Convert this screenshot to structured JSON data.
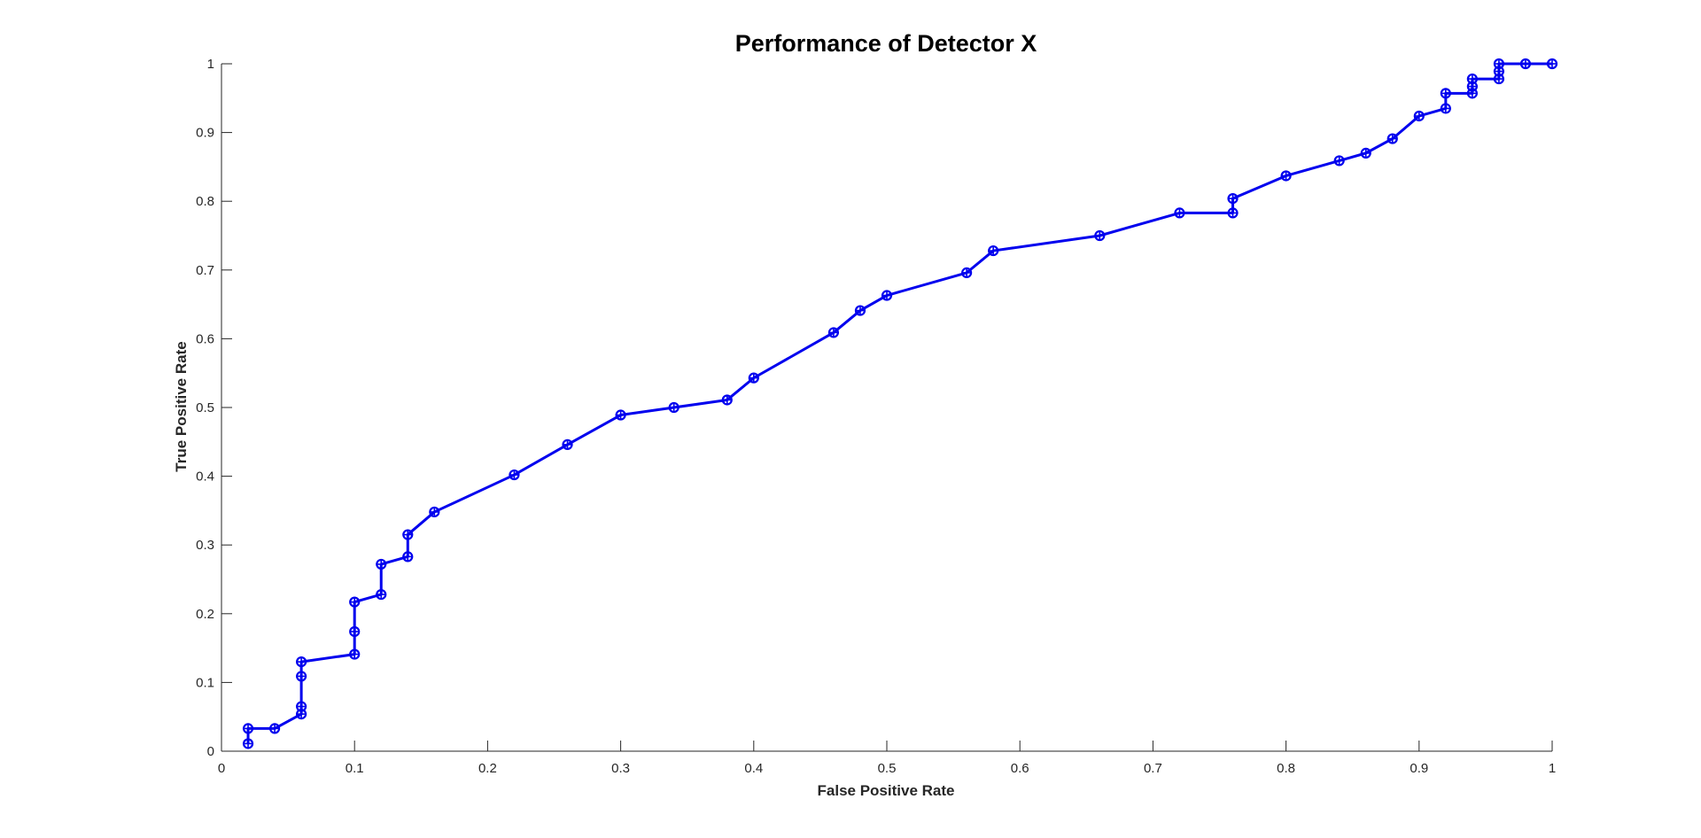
{
  "chart_data": {
    "type": "line",
    "title": "Performance of Detector X",
    "xlabel": "False Positive Rate",
    "ylabel": "True Positive Rate",
    "xlim": [
      0,
      1
    ],
    "ylim": [
      0,
      1
    ],
    "xticks": [
      "0",
      "0.1",
      "0.2",
      "0.3",
      "0.4",
      "0.5",
      "0.6",
      "0.7",
      "0.8",
      "0.9",
      "1"
    ],
    "yticks": [
      "0",
      "0.1",
      "0.2",
      "0.3",
      "0.4",
      "0.5",
      "0.6",
      "0.7",
      "0.8",
      "0.9",
      "1"
    ],
    "grid": false,
    "legend": null,
    "marker": "circle-plus",
    "line_color": "#0000ee",
    "series": [
      {
        "x": [
          0.02,
          0.02,
          0.04,
          0.06,
          0.06,
          0.06,
          0.06,
          0.1,
          0.1,
          0.1,
          0.12,
          0.12,
          0.14,
          0.14,
          0.16,
          0.22,
          0.26,
          0.3,
          0.34,
          0.38,
          0.4,
          0.46,
          0.48,
          0.5,
          0.56,
          0.58,
          0.66,
          0.72,
          0.76,
          0.76,
          0.8,
          0.84,
          0.86,
          0.88,
          0.9,
          0.92,
          0.92,
          0.94,
          0.94,
          0.94,
          0.96,
          0.96,
          0.96,
          0.98,
          1.0
        ],
        "y": [
          0.011,
          0.033,
          0.033,
          0.054,
          0.065,
          0.109,
          0.13,
          0.141,
          0.174,
          0.217,
          0.228,
          0.272,
          0.283,
          0.315,
          0.348,
          0.402,
          0.446,
          0.489,
          0.5,
          0.511,
          0.543,
          0.609,
          0.641,
          0.663,
          0.696,
          0.728,
          0.75,
          0.783,
          0.783,
          0.804,
          0.837,
          0.859,
          0.87,
          0.891,
          0.924,
          0.935,
          0.957,
          0.957,
          0.967,
          0.978,
          0.978,
          0.989,
          1.0,
          1.0,
          1.0
        ]
      }
    ]
  }
}
